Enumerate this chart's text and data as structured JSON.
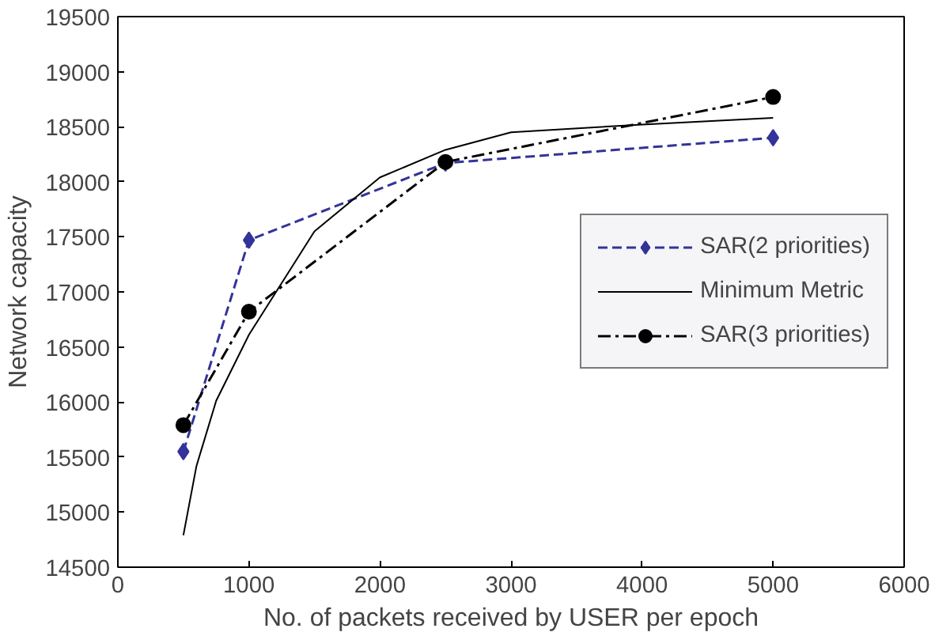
{
  "chart_data": {
    "type": "line",
    "xlabel": "No. of packets received by USER per epoch",
    "ylabel": "Network capacity",
    "xlim": [
      0,
      6000
    ],
    "xticks": [
      0,
      1000,
      2000,
      3000,
      4000,
      5000,
      6000
    ],
    "ylim": [
      14500,
      19500
    ],
    "yticks": [
      14500,
      15000,
      15500,
      16000,
      16500,
      17000,
      17500,
      18000,
      18500,
      19000,
      19500
    ],
    "grid": false,
    "legend": "right",
    "series": [
      {
        "name": "SAR(2 priorities)",
        "color": "#333399",
        "marker": "diamond",
        "line_style": "dashed",
        "x": [
          500,
          1000,
          2500,
          5000
        ],
        "values": [
          15550,
          17470,
          18170,
          18400
        ]
      },
      {
        "name": "Minimum Metric",
        "color": "#000000",
        "marker": "none",
        "line_style": "solid",
        "x": [
          500,
          600,
          750,
          1000,
          1500,
          2000,
          2500,
          3000,
          4000,
          5000
        ],
        "values": [
          14790,
          15420,
          16010,
          16610,
          17550,
          18040,
          18290,
          18450,
          18520,
          18580
        ]
      },
      {
        "name": "SAR(3 priorities)",
        "color": "#000000",
        "marker": "circle",
        "line_style": "dashdot",
        "x": [
          500,
          1000,
          2500,
          5000
        ],
        "values": [
          15790,
          16820,
          18180,
          18770
        ]
      }
    ]
  }
}
